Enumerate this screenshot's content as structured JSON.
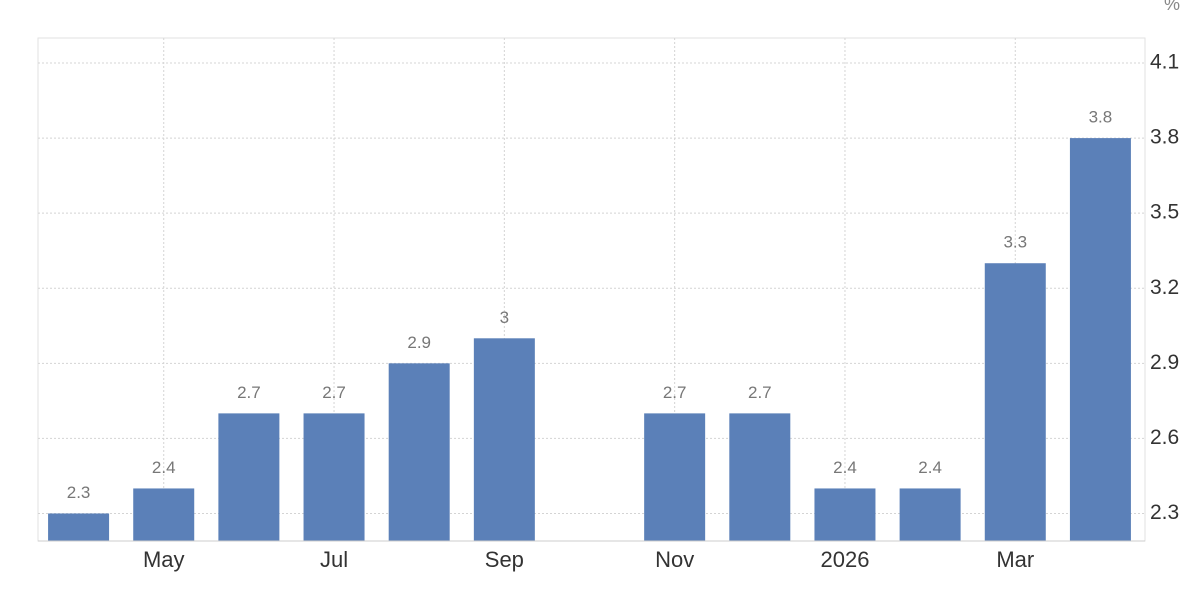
{
  "chart_data": {
    "type": "bar",
    "unit": "%",
    "categories": [
      null,
      "May",
      null,
      "Jul",
      null,
      "Sep",
      null,
      "Nov",
      null,
      "2026",
      null,
      "Mar",
      null
    ],
    "values": [
      2.3,
      2.4,
      2.7,
      2.7,
      2.9,
      3,
      null,
      2.7,
      2.7,
      2.4,
      2.4,
      3.3,
      3.8
    ],
    "color": "#5b80b8",
    "ylim": [
      2.19,
      4.2
    ],
    "yticks": [
      2.3,
      2.6,
      2.9,
      3.2,
      3.5,
      3.8,
      4.1
    ],
    "grid": true
  }
}
